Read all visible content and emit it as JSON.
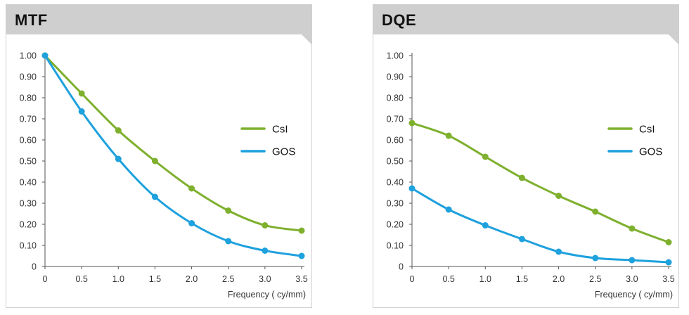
{
  "chart_data": [
    {
      "type": "line",
      "title": "MTF",
      "xlabel": "Frequency ( cy/mm)",
      "ylabel": "",
      "x": [
        0,
        0.5,
        1.0,
        1.5,
        2.0,
        2.5,
        3.0,
        3.5
      ],
      "xticks": [
        "0",
        "0.5",
        "1.0",
        "1.5",
        "2.0",
        "2.5",
        "3.0",
        "3.5"
      ],
      "yticks": [
        "0",
        "0.10",
        "0.20",
        "0.30",
        "0.40",
        "0.50",
        "0.60",
        "0.70",
        "0.80",
        "0.90",
        "1.00"
      ],
      "xlim": [
        0,
        3.5
      ],
      "ylim": [
        0,
        1.0
      ],
      "grid": false,
      "legend_position": "right",
      "series": [
        {
          "name": "CsI",
          "color": "#7eb02e",
          "values": [
            1.0,
            0.82,
            0.645,
            0.5,
            0.37,
            0.265,
            0.195,
            0.17
          ]
        },
        {
          "name": "GOS",
          "color": "#1ea1dd",
          "values": [
            1.0,
            0.735,
            0.51,
            0.33,
            0.205,
            0.12,
            0.075,
            0.05
          ]
        }
      ]
    },
    {
      "type": "line",
      "title": "DQE",
      "xlabel": "Frequency ( cy/mm)",
      "ylabel": "",
      "x": [
        0,
        0.5,
        1.0,
        1.5,
        2.0,
        2.5,
        3.0,
        3.5
      ],
      "xticks": [
        "0",
        "0.5",
        "1.0",
        "1.5",
        "2.0",
        "2.5",
        "3.0",
        "3.5"
      ],
      "yticks": [
        "0",
        "0.10",
        "0.20",
        "0.30",
        "0.40",
        "0.50",
        "0.60",
        "0.70",
        "0.80",
        "0.90",
        "1.00"
      ],
      "xlim": [
        0,
        3.5
      ],
      "ylim": [
        0,
        1.0
      ],
      "grid": false,
      "legend_position": "right",
      "series": [
        {
          "name": "CsI",
          "color": "#7eb02e",
          "values": [
            0.68,
            0.62,
            0.52,
            0.42,
            0.335,
            0.26,
            0.18,
            0.115
          ]
        },
        {
          "name": "GOS",
          "color": "#1ea1dd",
          "values": [
            0.37,
            0.27,
            0.195,
            0.13,
            0.07,
            0.04,
            0.03,
            0.02
          ]
        }
      ]
    }
  ]
}
